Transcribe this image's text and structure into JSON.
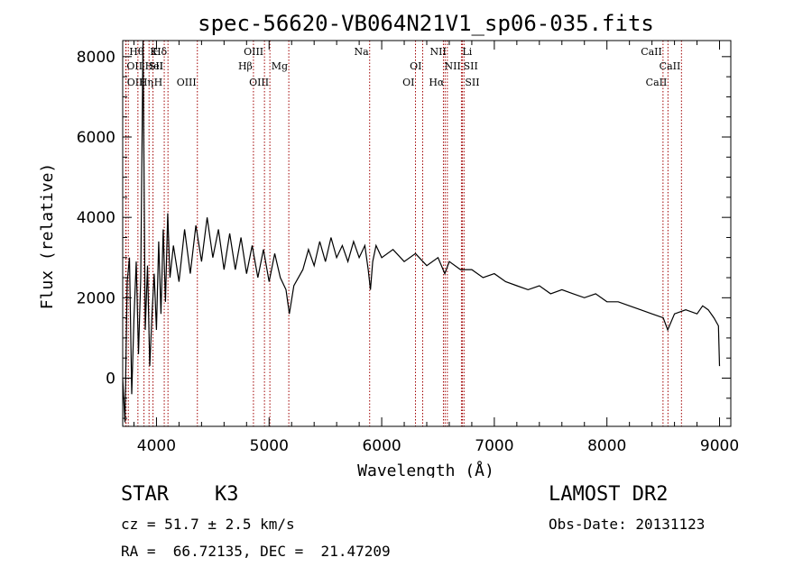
{
  "chart_data": {
    "type": "line",
    "title": "spec-56620-VB064N21V1_sp06-035.fits",
    "xlabel": "Wavelength (Å)",
    "ylabel": "Flux (relative)",
    "xlim": [
      3700,
      9100
    ],
    "ylim": [
      -1200,
      8400
    ],
    "x_ticks": [
      4000,
      5000,
      6000,
      7000,
      8000,
      9000
    ],
    "y_ticks": [
      0,
      2000,
      4000,
      6000,
      8000
    ],
    "grid": false,
    "line_color": "#000000",
    "marker_color": "#a00000",
    "series": [
      {
        "points": [
          [
            3700,
            0
          ],
          [
            3720,
            -1100
          ],
          [
            3740,
            2400
          ],
          [
            3760,
            3000
          ],
          [
            3780,
            -400
          ],
          [
            3800,
            1500
          ],
          [
            3820,
            2900
          ],
          [
            3840,
            600
          ],
          [
            3860,
            2500
          ],
          [
            3880,
            8400
          ],
          [
            3900,
            1200
          ],
          [
            3920,
            2800
          ],
          [
            3940,
            300
          ],
          [
            3960,
            1600
          ],
          [
            3980,
            2600
          ],
          [
            4000,
            1200
          ],
          [
            4020,
            3400
          ],
          [
            4040,
            1600
          ],
          [
            4060,
            3700
          ],
          [
            4080,
            1900
          ],
          [
            4100,
            4100
          ],
          [
            4120,
            2500
          ],
          [
            4150,
            3300
          ],
          [
            4200,
            2400
          ],
          [
            4250,
            3700
          ],
          [
            4300,
            2600
          ],
          [
            4350,
            3800
          ],
          [
            4400,
            2900
          ],
          [
            4450,
            4000
          ],
          [
            4500,
            3000
          ],
          [
            4550,
            3700
          ],
          [
            4600,
            2700
          ],
          [
            4650,
            3600
          ],
          [
            4700,
            2700
          ],
          [
            4750,
            3500
          ],
          [
            4800,
            2600
          ],
          [
            4850,
            3300
          ],
          [
            4900,
            2500
          ],
          [
            4950,
            3200
          ],
          [
            5000,
            2400
          ],
          [
            5050,
            3100
          ],
          [
            5100,
            2500
          ],
          [
            5150,
            2200
          ],
          [
            5180,
            1600
          ],
          [
            5220,
            2300
          ],
          [
            5300,
            2700
          ],
          [
            5350,
            3200
          ],
          [
            5400,
            2800
          ],
          [
            5450,
            3400
          ],
          [
            5500,
            2900
          ],
          [
            5550,
            3500
          ],
          [
            5600,
            3000
          ],
          [
            5650,
            3300
          ],
          [
            5700,
            2900
          ],
          [
            5750,
            3400
          ],
          [
            5800,
            3000
          ],
          [
            5850,
            3300
          ],
          [
            5880,
            2700
          ],
          [
            5900,
            2200
          ],
          [
            5920,
            2900
          ],
          [
            5950,
            3300
          ],
          [
            6000,
            3000
          ],
          [
            6100,
            3200
          ],
          [
            6200,
            2900
          ],
          [
            6300,
            3100
          ],
          [
            6400,
            2800
          ],
          [
            6500,
            3000
          ],
          [
            6560,
            2600
          ],
          [
            6600,
            2900
          ],
          [
            6700,
            2700
          ],
          [
            6800,
            2700
          ],
          [
            6900,
            2500
          ],
          [
            7000,
            2600
          ],
          [
            7100,
            2400
          ],
          [
            7200,
            2300
          ],
          [
            7300,
            2200
          ],
          [
            7400,
            2300
          ],
          [
            7500,
            2100
          ],
          [
            7600,
            2200
          ],
          [
            7700,
            2100
          ],
          [
            7800,
            2000
          ],
          [
            7900,
            2100
          ],
          [
            8000,
            1900
          ],
          [
            8100,
            1900
          ],
          [
            8200,
            1800
          ],
          [
            8300,
            1700
          ],
          [
            8400,
            1600
          ],
          [
            8500,
            1500
          ],
          [
            8540,
            1200
          ],
          [
            8600,
            1600
          ],
          [
            8700,
            1700
          ],
          [
            8800,
            1600
          ],
          [
            8850,
            1800
          ],
          [
            8900,
            1700
          ],
          [
            8950,
            1500
          ],
          [
            8990,
            1300
          ],
          [
            9000,
            300
          ]
        ]
      }
    ],
    "lines": [
      {
        "label": "OII",
        "x": 3727,
        "row": 1,
        "side": "right"
      },
      {
        "label": "Hθ",
        "x": 3750,
        "row": 0,
        "side": "right"
      },
      {
        "label": "OII",
        "x": 3730,
        "row": 2,
        "side": "right"
      },
      {
        "label": "Hη",
        "x": 3835,
        "row": 2,
        "side": "right"
      },
      {
        "label": "K",
        "x": 3934,
        "row": 0,
        "side": "right"
      },
      {
        "label": "HeI",
        "x": 3889,
        "row": 1,
        "side": "right"
      },
      {
        "label": "H",
        "x": 3969,
        "row": 2,
        "side": "right"
      },
      {
        "label": "SII",
        "x": 4069,
        "row": 1,
        "side": "left"
      },
      {
        "label": "Hδ",
        "x": 4102,
        "row": 0,
        "side": "left"
      },
      {
        "label": "OIII",
        "x": 4363,
        "row": 2,
        "side": "left"
      },
      {
        "label": "OIII",
        "x": 4959,
        "row": 0,
        "side": "left"
      },
      {
        "label": "Hβ",
        "x": 4861,
        "row": 1,
        "side": "left"
      },
      {
        "label": "OIII",
        "x": 5007,
        "row": 2,
        "side": "left"
      },
      {
        "label": "Mg",
        "x": 5175,
        "row": 1,
        "side": "left"
      },
      {
        "label": "Na",
        "x": 5893,
        "row": 0,
        "side": "left"
      },
      {
        "label": "OI",
        "x": 6364,
        "row": 1,
        "side": "left"
      },
      {
        "label": "OI",
        "x": 6300,
        "row": 2,
        "side": "left"
      },
      {
        "label": "NII",
        "x": 6583,
        "row": 0,
        "side": "left"
      },
      {
        "label": "NII",
        "x": 6548,
        "row": 1,
        "side": "right"
      },
      {
        "label": "Hα",
        "x": 6563,
        "row": 2,
        "side": "left"
      },
      {
        "label": "Li",
        "x": 6708,
        "row": 0,
        "side": "right"
      },
      {
        "label": "SII",
        "x": 6717,
        "row": 1,
        "side": "right"
      },
      {
        "label": "SII",
        "x": 6731,
        "row": 2,
        "side": "right"
      },
      {
        "label": "CaII",
        "x": 8498,
        "row": 0,
        "side": "left"
      },
      {
        "label": "CaII",
        "x": 8542,
        "row": 2,
        "side": "left"
      },
      {
        "label": "CaII",
        "x": 8662,
        "row": 1,
        "side": "left"
      }
    ]
  },
  "info": {
    "object_class": "STAR",
    "subclass": "K3",
    "survey": "LAMOST DR2",
    "cz": "cz = 51.7 ± 2.5 km/s",
    "obs_date": "Obs-Date: 20131123",
    "radec": "RA =  66.72135, DEC =  21.47209"
  }
}
